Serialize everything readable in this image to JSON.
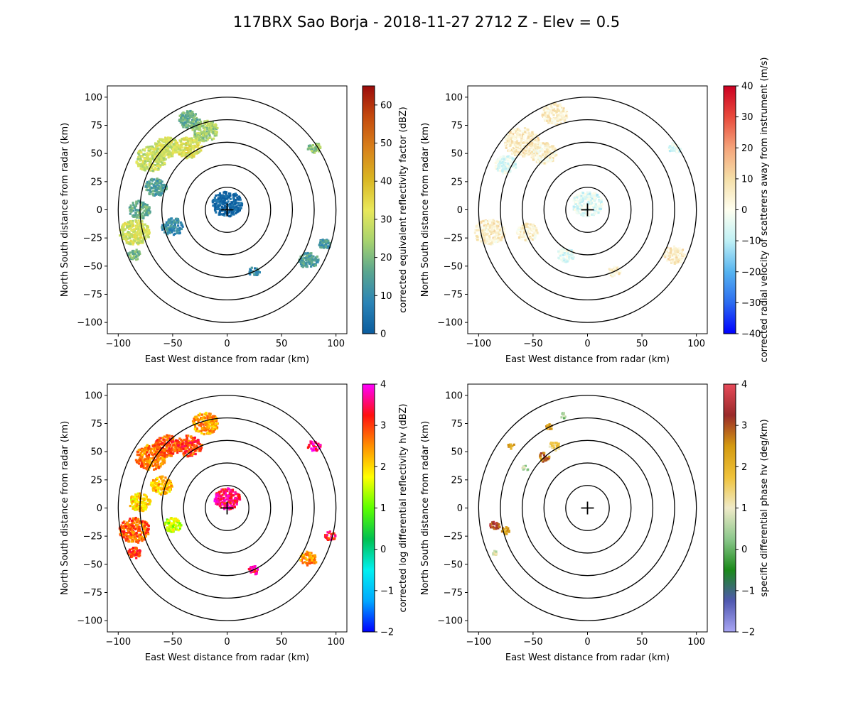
{
  "figure": {
    "title": "117BRX Sao Borja - 2018-11-27 2712 Z -  Elev = 0.5"
  },
  "colors": {
    "axis": "#000000",
    "range_ring": "#000000"
  },
  "chart_data": [
    {
      "type": "ppi",
      "id": "reflectivity",
      "xlabel": "East West distance from radar (km)",
      "ylabel": "North South distance from radar (km)",
      "xlim": [
        -110,
        110
      ],
      "ylim": [
        -110,
        110
      ],
      "xticks": [
        -100,
        -50,
        0,
        50,
        100
      ],
      "yticks": [
        -100,
        -75,
        -50,
        -25,
        0,
        25,
        50,
        75,
        100
      ],
      "range_rings_km": [
        20,
        40,
        60,
        80,
        100
      ],
      "colorbar": {
        "label": "corrected equivalent reflectivity factor (dBZ)",
        "range": [
          0,
          65
        ],
        "ticks": [
          0,
          10,
          20,
          30,
          40,
          50,
          60
        ],
        "colors": [
          "#0a5c9e",
          "#2b84b6",
          "#5aa68f",
          "#a7d36e",
          "#e9e85a",
          "#d9b521",
          "#d8801a",
          "#c44a0d",
          "#9b0b0b"
        ]
      },
      "echoes": [
        {
          "x": -70,
          "y": 45,
          "value": 28,
          "spread": 14
        },
        {
          "x": -55,
          "y": 55,
          "value": 30,
          "spread": 12
        },
        {
          "x": -35,
          "y": 55,
          "value": 32,
          "spread": 12
        },
        {
          "x": -20,
          "y": 70,
          "value": 24,
          "spread": 12
        },
        {
          "x": -35,
          "y": 80,
          "value": 18,
          "spread": 10
        },
        {
          "x": -85,
          "y": -20,
          "value": 30,
          "spread": 14
        },
        {
          "x": -80,
          "y": 0,
          "value": 18,
          "spread": 10
        },
        {
          "x": -65,
          "y": 20,
          "value": 15,
          "spread": 10
        },
        {
          "x": -50,
          "y": -15,
          "value": 10,
          "spread": 10
        },
        {
          "x": 0,
          "y": 5,
          "value": 2,
          "spread": 14
        },
        {
          "x": 80,
          "y": 55,
          "value": 22,
          "spread": 6
        },
        {
          "x": 75,
          "y": -45,
          "value": 14,
          "spread": 9
        },
        {
          "x": 90,
          "y": -30,
          "value": 12,
          "spread": 6
        },
        {
          "x": 25,
          "y": -55,
          "value": 10,
          "spread": 5
        },
        {
          "x": -85,
          "y": -40,
          "value": 20,
          "spread": 6
        }
      ]
    },
    {
      "type": "ppi",
      "id": "velocity",
      "xlabel": "East West distance from radar (km)",
      "ylabel": "North South distance from radar (km)",
      "xlim": [
        -110,
        110
      ],
      "ylim": [
        -110,
        110
      ],
      "xticks": [
        -100,
        -50,
        0,
        50,
        100
      ],
      "yticks": [
        -100,
        -75,
        -50,
        -25,
        0,
        25,
        50,
        75,
        100
      ],
      "range_rings_km": [
        20,
        40,
        60,
        80,
        100
      ],
      "colorbar": {
        "label": "corrected radial velocity of scatterers away from instrument (m/s)",
        "range": [
          -40,
          40
        ],
        "ticks": [
          -40,
          -30,
          -20,
          -10,
          0,
          10,
          20,
          30,
          40
        ],
        "colors": [
          "#0000ff",
          "#2c6cf0",
          "#56b4f0",
          "#bff0f5",
          "#fffff0",
          "#f5dfa8",
          "#f5a47a",
          "#e84a3c",
          "#cc0022"
        ]
      },
      "echoes": [
        {
          "x": -60,
          "y": 60,
          "value": 6,
          "spread": 16
        },
        {
          "x": -30,
          "y": 85,
          "value": 5,
          "spread": 12
        },
        {
          "x": -40,
          "y": 50,
          "value": 4,
          "spread": 12
        },
        {
          "x": -75,
          "y": 40,
          "value": -4,
          "spread": 10
        },
        {
          "x": -90,
          "y": -20,
          "value": 5,
          "spread": 14
        },
        {
          "x": -55,
          "y": -20,
          "value": 4,
          "spread": 10
        },
        {
          "x": 0,
          "y": 5,
          "value": -5,
          "spread": 14
        },
        {
          "x": 80,
          "y": 55,
          "value": -6,
          "spread": 6
        },
        {
          "x": 80,
          "y": -40,
          "value": 6,
          "spread": 10
        },
        {
          "x": 25,
          "y": -55,
          "value": 4,
          "spread": 6
        },
        {
          "x": -20,
          "y": -40,
          "value": -4,
          "spread": 8
        }
      ]
    },
    {
      "type": "ppi",
      "id": "zdr",
      "xlabel": "East West distance from radar (km)",
      "ylabel": "North South distance from radar (km)",
      "xlim": [
        -110,
        110
      ],
      "ylim": [
        -110,
        110
      ],
      "xticks": [
        -100,
        -50,
        0,
        50,
        100
      ],
      "yticks": [
        -100,
        -75,
        -50,
        -25,
        0,
        25,
        50,
        75,
        100
      ],
      "range_rings_km": [
        20,
        40,
        60,
        80,
        100
      ],
      "colorbar": {
        "label": "corrected log differential reflectivity hv (dBZ)",
        "range": [
          -2,
          4
        ],
        "ticks": [
          -2,
          -1,
          0,
          1,
          2,
          3,
          4
        ],
        "colors": [
          "#0000ff",
          "#00a8ff",
          "#00f0f0",
          "#00c050",
          "#5cff00",
          "#ffff00",
          "#ff9000",
          "#ff1010",
          "#ff00ff"
        ]
      },
      "echoes": [
        {
          "x": -70,
          "y": 45,
          "value": 2.6,
          "spread": 14
        },
        {
          "x": -55,
          "y": 55,
          "value": 2.9,
          "spread": 12
        },
        {
          "x": -35,
          "y": 55,
          "value": 3.0,
          "spread": 12
        },
        {
          "x": -20,
          "y": 75,
          "value": 2.4,
          "spread": 12
        },
        {
          "x": -85,
          "y": -20,
          "value": 2.8,
          "spread": 14
        },
        {
          "x": -80,
          "y": 5,
          "value": 2.0,
          "spread": 10
        },
        {
          "x": -60,
          "y": 20,
          "value": 2.2,
          "spread": 10
        },
        {
          "x": -50,
          "y": -15,
          "value": 1.5,
          "spread": 8
        },
        {
          "x": 0,
          "y": 8,
          "value": 3.5,
          "spread": 12
        },
        {
          "x": 80,
          "y": 55,
          "value": 3.6,
          "spread": 6
        },
        {
          "x": 75,
          "y": -45,
          "value": 2.5,
          "spread": 8
        },
        {
          "x": 95,
          "y": -25,
          "value": 3.2,
          "spread": 5
        },
        {
          "x": 25,
          "y": -55,
          "value": 3.5,
          "spread": 5
        },
        {
          "x": -85,
          "y": -40,
          "value": 3.0,
          "spread": 6
        }
      ]
    },
    {
      "type": "ppi",
      "id": "kdp",
      "xlabel": "East West distance from radar (km)",
      "ylabel": "North South distance from radar (km)",
      "xlim": [
        -110,
        110
      ],
      "ylim": [
        -110,
        110
      ],
      "xticks": [
        -100,
        -50,
        0,
        50,
        100
      ],
      "yticks": [
        -100,
        -75,
        -50,
        -25,
        0,
        25,
        50,
        75,
        100
      ],
      "range_rings_km": [
        20,
        40,
        60,
        80,
        100
      ],
      "colorbar": {
        "label": "specific differential phase hv (deg/km)",
        "range": [
          -2,
          4
        ],
        "ticks": [
          -2,
          -1,
          0,
          1,
          2,
          3,
          4
        ],
        "colors": [
          "#a9a6f5",
          "#5058b0",
          "#1a8a1a",
          "#8cc88c",
          "#efeac8",
          "#efc23a",
          "#d49a10",
          "#9a2a2a",
          "#e84a5a"
        ]
      },
      "echoes": [
        {
          "x": -40,
          "y": 45,
          "value": 2.7,
          "spread": 5
        },
        {
          "x": -30,
          "y": 55,
          "value": 1.5,
          "spread": 5
        },
        {
          "x": -35,
          "y": 72,
          "value": 2.5,
          "spread": 3
        },
        {
          "x": -22,
          "y": 82,
          "value": 0.3,
          "spread": 3
        },
        {
          "x": -70,
          "y": 55,
          "value": 2.5,
          "spread": 3
        },
        {
          "x": -57,
          "y": 35,
          "value": 0.6,
          "spread": 3
        },
        {
          "x": -85,
          "y": -15,
          "value": 3.2,
          "spread": 5
        },
        {
          "x": -75,
          "y": -20,
          "value": 2.2,
          "spread": 4
        },
        {
          "x": -85,
          "y": -40,
          "value": 1.0,
          "spread": 3
        }
      ]
    }
  ]
}
